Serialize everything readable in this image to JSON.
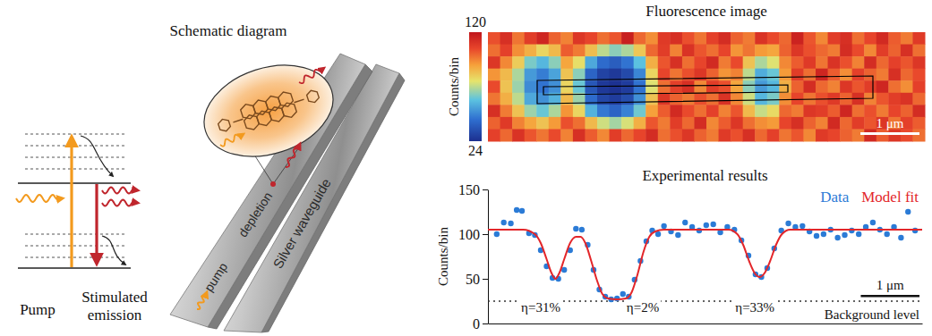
{
  "diagram": {
    "energy_levels": {
      "pump_label": "Pump",
      "emission_label": "Stimulated emission"
    },
    "schematic": {
      "title": "Schematic diagram",
      "pump_label": "pump",
      "depletion_label": "depletion",
      "waveguide_label": "Silver waveguide"
    }
  },
  "chart_data": [
    {
      "type": "heatmap",
      "title": "Fluorescence image",
      "colorbar": {
        "range": [
          24,
          120
        ],
        "ticks": [
          120,
          24
        ],
        "label": "Counts/bin"
      },
      "width_um": 7.4,
      "scale_bar": {
        "length": 1,
        "label": "1 μm"
      },
      "values": [
        [
          104,
          112,
          98,
          108,
          115,
          101,
          96,
          110,
          106,
          99,
          103,
          117,
          100,
          94,
          109,
          112,
          104,
          98,
          107,
          113,
          101,
          97,
          111,
          105,
          100,
          116,
          103,
          95,
          108,
          112,
          99,
          106,
          114,
          102,
          97,
          109
        ],
        [
          99,
          107,
          94,
          88,
          80,
          86,
          102,
          97,
          85,
          72,
          66,
          70,
          83,
          100,
          108,
          96,
          111,
          103,
          99,
          106,
          93,
          98,
          92,
          90,
          101,
          110,
          104,
          100,
          97,
          113,
          105,
          95,
          108,
          101,
          112,
          99
        ],
        [
          110,
          95,
          82,
          64,
          58,
          66,
          90,
          78,
          55,
          42,
          38,
          44,
          60,
          88,
          103,
          112,
          99,
          106,
          114,
          97,
          105,
          84,
          70,
          76,
          95,
          102,
          109,
          98,
          111,
          104,
          96,
          113,
          100,
          107,
          103,
          110
        ],
        [
          93,
          86,
          70,
          52,
          46,
          54,
          84,
          66,
          40,
          30,
          27,
          32,
          48,
          80,
          106,
          98,
          104,
          110,
          101,
          93,
          96,
          72,
          56,
          62,
          92,
          108,
          99,
          115,
          102,
          94,
          107,
          101,
          97,
          112,
          100,
          105
        ],
        [
          105,
          84,
          68,
          49,
          44,
          50,
          80,
          62,
          36,
          27,
          25,
          28,
          44,
          76,
          99,
          107,
          112,
          95,
          108,
          104,
          90,
          66,
          52,
          58,
          88,
          101,
          113,
          100,
          96,
          110,
          103,
          108,
          115,
          99,
          94,
          107
        ],
        [
          98,
          88,
          72,
          55,
          50,
          57,
          86,
          68,
          42,
          31,
          28,
          33,
          50,
          84,
          110,
          101,
          97,
          104,
          99,
          111,
          95,
          74,
          58,
          64,
          94,
          106,
          98,
          104,
          109,
          101,
          112,
          96,
          103,
          108,
          111,
          100
        ],
        [
          112,
          97,
          84,
          68,
          62,
          70,
          93,
          80,
          57,
          45,
          40,
          47,
          63,
          91,
          102,
          114,
          105,
          99,
          107,
          96,
          103,
          86,
          73,
          79,
          100,
          97,
          110,
          108,
          102,
          115,
          99,
          104,
          97,
          106,
          101,
          113
        ],
        [
          101,
          109,
          96,
          90,
          84,
          92,
          104,
          99,
          86,
          74,
          69,
          75,
          88,
          103,
          97,
          108,
          100,
          113,
          95,
          102,
          110,
          99,
          94,
          92,
          106,
          112,
          101,
          96,
          114,
          100,
          108,
          103,
          110,
          98,
          107,
          102
        ],
        [
          107,
          100,
          111,
          103,
          98,
          105,
          96,
          112,
          102,
          95,
          108,
          100,
          106,
          113,
          99,
          104,
          110,
          101,
          97,
          109,
          104,
          112,
          100,
          107,
          98,
          103,
          95,
          109,
          106,
          101,
          97,
          114,
          102,
          110,
          105,
          99
        ]
      ]
    },
    {
      "type": "scatter",
      "title": "Experimental results",
      "ylabel": "Counts/bin",
      "xlim": [
        0,
        7.4
      ],
      "xticks": [],
      "ylim": [
        0,
        150
      ],
      "yticks": [
        0,
        50,
        100,
        150
      ],
      "tick_labels": "y",
      "legend": "top-right",
      "series": [
        {
          "name": "Data",
          "type": "scatter",
          "color": "#2b7bd6",
          "marker": "circle",
          "x": [
            0.15,
            0.27,
            0.39,
            0.49,
            0.58,
            0.7,
            0.8,
            0.9,
            1.0,
            1.1,
            1.2,
            1.3,
            1.4,
            1.5,
            1.6,
            1.7,
            1.8,
            1.9,
            2.0,
            2.1,
            2.2,
            2.3,
            2.4,
            2.5,
            2.6,
            2.7,
            2.8,
            2.9,
            3.0,
            3.12,
            3.24,
            3.36,
            3.48,
            3.6,
            3.72,
            3.84,
            3.96,
            4.08,
            4.2,
            4.32,
            4.44,
            4.56,
            4.66,
            4.76,
            4.88,
            5.0,
            5.12,
            5.24,
            5.36,
            5.48,
            5.6,
            5.72,
            5.84,
            5.96,
            6.08,
            6.2,
            6.32,
            6.44,
            6.56,
            6.68,
            6.8,
            6.92,
            7.04,
            7.16,
            7.28
          ],
          "values": [
            100,
            113,
            112,
            127,
            126,
            101,
            99,
            82,
            64,
            51,
            50,
            60,
            82,
            106,
            105,
            88,
            60,
            38,
            30,
            27,
            28,
            33,
            30,
            49,
            70,
            92,
            104,
            100,
            109,
            103,
            99,
            113,
            108,
            104,
            110,
            111,
            102,
            108,
            105,
            93,
            76,
            55,
            52,
            62,
            84,
            104,
            112,
            108,
            109,
            103,
            98,
            100,
            105,
            96,
            99,
            104,
            100,
            108,
            113,
            105,
            100,
            108,
            96,
            125,
            104
          ]
        },
        {
          "name": "Model fit",
          "type": "line",
          "color": "#e3262a",
          "line_style": "solid",
          "x": [
            0,
            0.6,
            0.8,
            0.9,
            1.0,
            1.08,
            1.15,
            1.22,
            1.3,
            1.4,
            1.5,
            1.58,
            1.66,
            1.76,
            1.86,
            1.95,
            2.05,
            2.2,
            2.35,
            2.45,
            2.55,
            2.65,
            2.75,
            2.85,
            3.0,
            4.1,
            4.25,
            4.35,
            4.45,
            4.55,
            4.63,
            4.71,
            4.81,
            4.91,
            5.01,
            5.15,
            7.4
          ],
          "values": [
            105,
            105,
            100,
            90,
            72,
            57,
            50,
            57,
            72,
            90,
            97,
            97,
            90,
            70,
            48,
            33,
            28,
            27,
            28,
            35,
            55,
            80,
            97,
            103,
            105,
            105,
            100,
            88,
            70,
            56,
            52,
            56,
            70,
            88,
            100,
            105,
            105
          ]
        }
      ],
      "background_level": 25,
      "background_label": "Background level",
      "annotations": [
        {
          "text": "η=31%",
          "x": 0.9,
          "y": 13
        },
        {
          "text": "η=2%",
          "x": 2.64,
          "y": 13
        },
        {
          "text": "η=33%",
          "x": 4.55,
          "y": 13
        }
      ],
      "scale_bar": {
        "length": 1,
        "label": "1 μm"
      }
    }
  ]
}
